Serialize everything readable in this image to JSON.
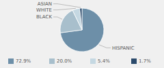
{
  "chart_data": {
    "type": "pie",
    "categories": [
      "HISPANIC",
      "BLACK",
      "WHITE",
      "ASIAN"
    ],
    "values": [
      72.9,
      20.0,
      5.4,
      1.7
    ],
    "value_labels": [
      "72.9%",
      "20.0%",
      "5.4%",
      "1.7%"
    ],
    "colors": [
      "#6d8fa8",
      "#a8bfcc",
      "#c5d8e2",
      "#2b4a6b"
    ],
    "legend": "bottom"
  }
}
